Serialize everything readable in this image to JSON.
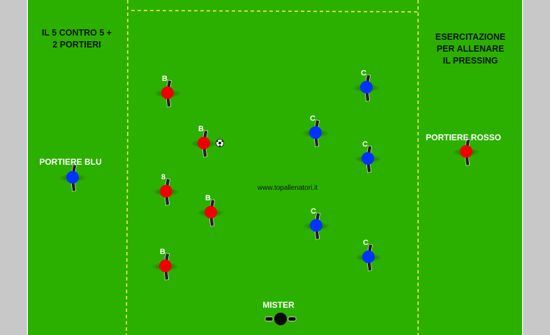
{
  "colors": {
    "field": "#2cb000",
    "side": "#c8c8c8",
    "line": "#f5e65a",
    "red": "#f00000",
    "blue": "#0033ff",
    "coach": "#0a0a0a"
  },
  "titles": {
    "left": [
      "IL 5 CONTRO 5 +",
      "2 PORTIERI"
    ],
    "right": [
      "ESERCITAZIONE",
      "PER ALLENARE",
      "IL PRESSING"
    ]
  },
  "labels": {
    "keeper_blue": "PORTIERE BLU",
    "keeper_red": "PORTIERE ROSSO",
    "coach": "MISTER"
  },
  "watermark": "www.topallenatori.it",
  "players": {
    "red": [
      {
        "letter": "B"
      },
      {
        "letter": "B"
      },
      {
        "letter": "8"
      },
      {
        "letter": "B"
      },
      {
        "letter": "B"
      }
    ],
    "blue": [
      {
        "letter": "C"
      },
      {
        "letter": "C"
      },
      {
        "letter": "C"
      },
      {
        "letter": "C"
      },
      {
        "letter": "C"
      }
    ]
  },
  "icons": {
    "ball": "soccer-ball-icon"
  }
}
